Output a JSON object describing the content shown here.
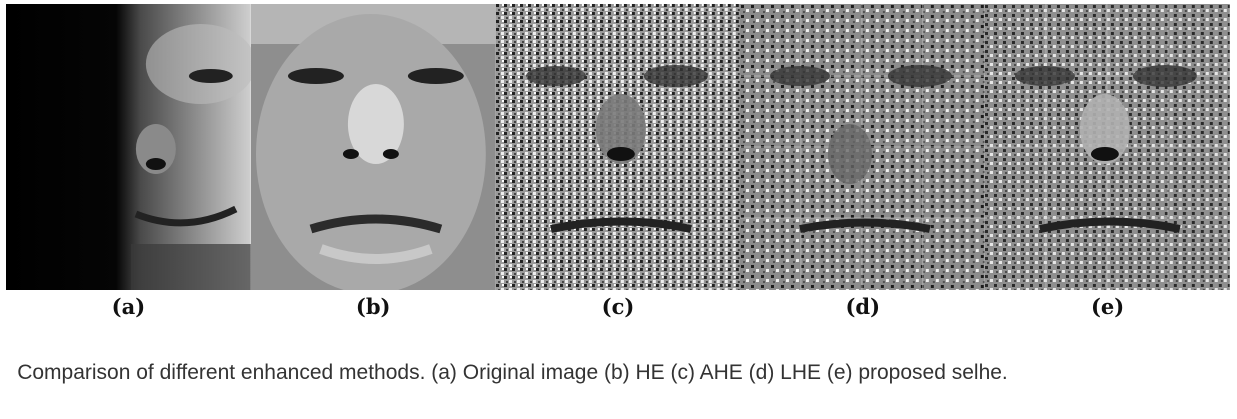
{
  "figure": {
    "panels": [
      {
        "label": "(a)",
        "icon": "face-original-dark-image"
      },
      {
        "label": "(b)",
        "icon": "face-he-image"
      },
      {
        "label": "(c)",
        "icon": "face-ahe-image"
      },
      {
        "label": "(d)",
        "icon": "face-lhe-image"
      },
      {
        "label": "(e)",
        "icon": "face-proposed-image"
      }
    ]
  },
  "caption": {
    "text": "Comparison of different enhanced methods. (a) Original image (b) HE (c) AHE (d) LHE (e) proposed selhe."
  }
}
